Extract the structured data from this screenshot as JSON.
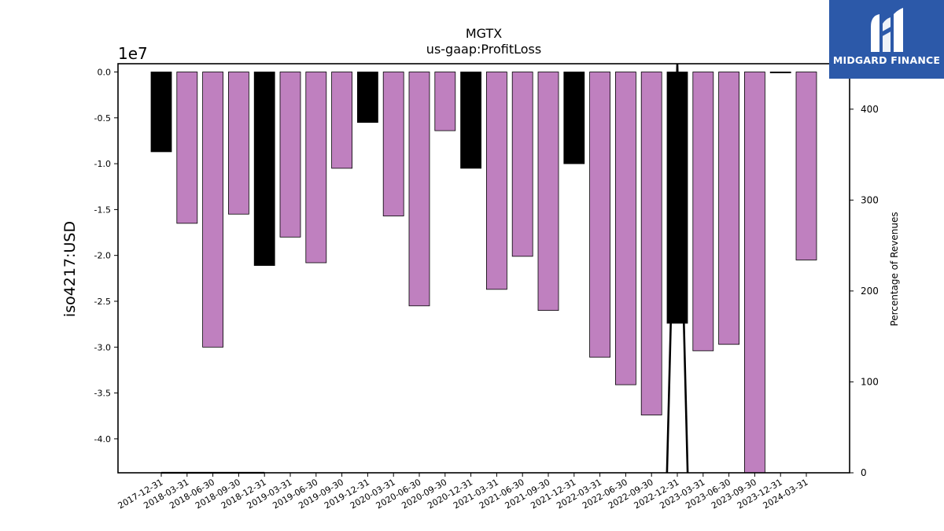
{
  "chart_data": {
    "type": "bar",
    "title": "MGTX",
    "subtitle": "us-gaap:ProfitLoss",
    "ylabel": "iso4217:USD",
    "y_offset_text": "1e7",
    "y2label": "Percentage of Revenues",
    "ylim": [
      -43700000,
      900000
    ],
    "y2lim": [
      0,
      450
    ],
    "yticks": [
      "0.0",
      "-0.5",
      "-1.0",
      "-1.5",
      "-2.0",
      "-2.5",
      "-3.0",
      "-3.5",
      "-4.0"
    ],
    "y2ticks": [
      "0",
      "100",
      "200",
      "300",
      "400"
    ],
    "categories": [
      "2017-12-31",
      "2018-03-31",
      "2018-06-30",
      "2018-09-30",
      "2018-12-31",
      "2019-03-31",
      "2019-06-30",
      "2019-09-30",
      "2019-12-31",
      "2020-03-31",
      "2020-06-30",
      "2020-09-30",
      "2020-12-31",
      "2021-03-31",
      "2021-06-30",
      "2021-09-30",
      "2021-12-31",
      "2022-03-31",
      "2022-06-30",
      "2022-09-30",
      "2022-12-31",
      "2023-03-31",
      "2023-06-30",
      "2023-09-30",
      "2023-12-31",
      "2024-03-31"
    ],
    "values": [
      -8700000,
      -16500000,
      -30000000,
      -15500000,
      -21100000,
      -18000000,
      -20800000,
      -10500000,
      -5500000,
      -15700000,
      -25500000,
      -6400000,
      -10500000,
      -23700000,
      -20100000,
      -26000000,
      -10000000,
      -31100000,
      -34100000,
      -37400000,
      -27400000,
      -30400000,
      -29700000,
      -43800000,
      -100000,
      -20500000
    ],
    "bar_kind": [
      "annual",
      "quarterly",
      "quarterly",
      "quarterly",
      "annual",
      "quarterly",
      "quarterly",
      "quarterly",
      "annual",
      "quarterly",
      "quarterly",
      "quarterly",
      "annual",
      "quarterly",
      "quarterly",
      "quarterly",
      "annual",
      "quarterly",
      "quarterly",
      "quarterly",
      "annual",
      "quarterly",
      "quarterly",
      "quarterly",
      "annual",
      "quarterly"
    ],
    "line_series": {
      "x_index": [
        0,
        1,
        2,
        3,
        4,
        19.6,
        20,
        20.4
      ],
      "values": [
        0,
        0,
        0,
        0,
        0,
        0,
        500,
        0
      ]
    },
    "colors": {
      "annual": "#000000",
      "quarterly": "#bf80bf",
      "edge": "#000000",
      "line": "#000000"
    }
  },
  "logo": {
    "text": "MIDGARD FINANCE",
    "background": "#2c59a9"
  }
}
